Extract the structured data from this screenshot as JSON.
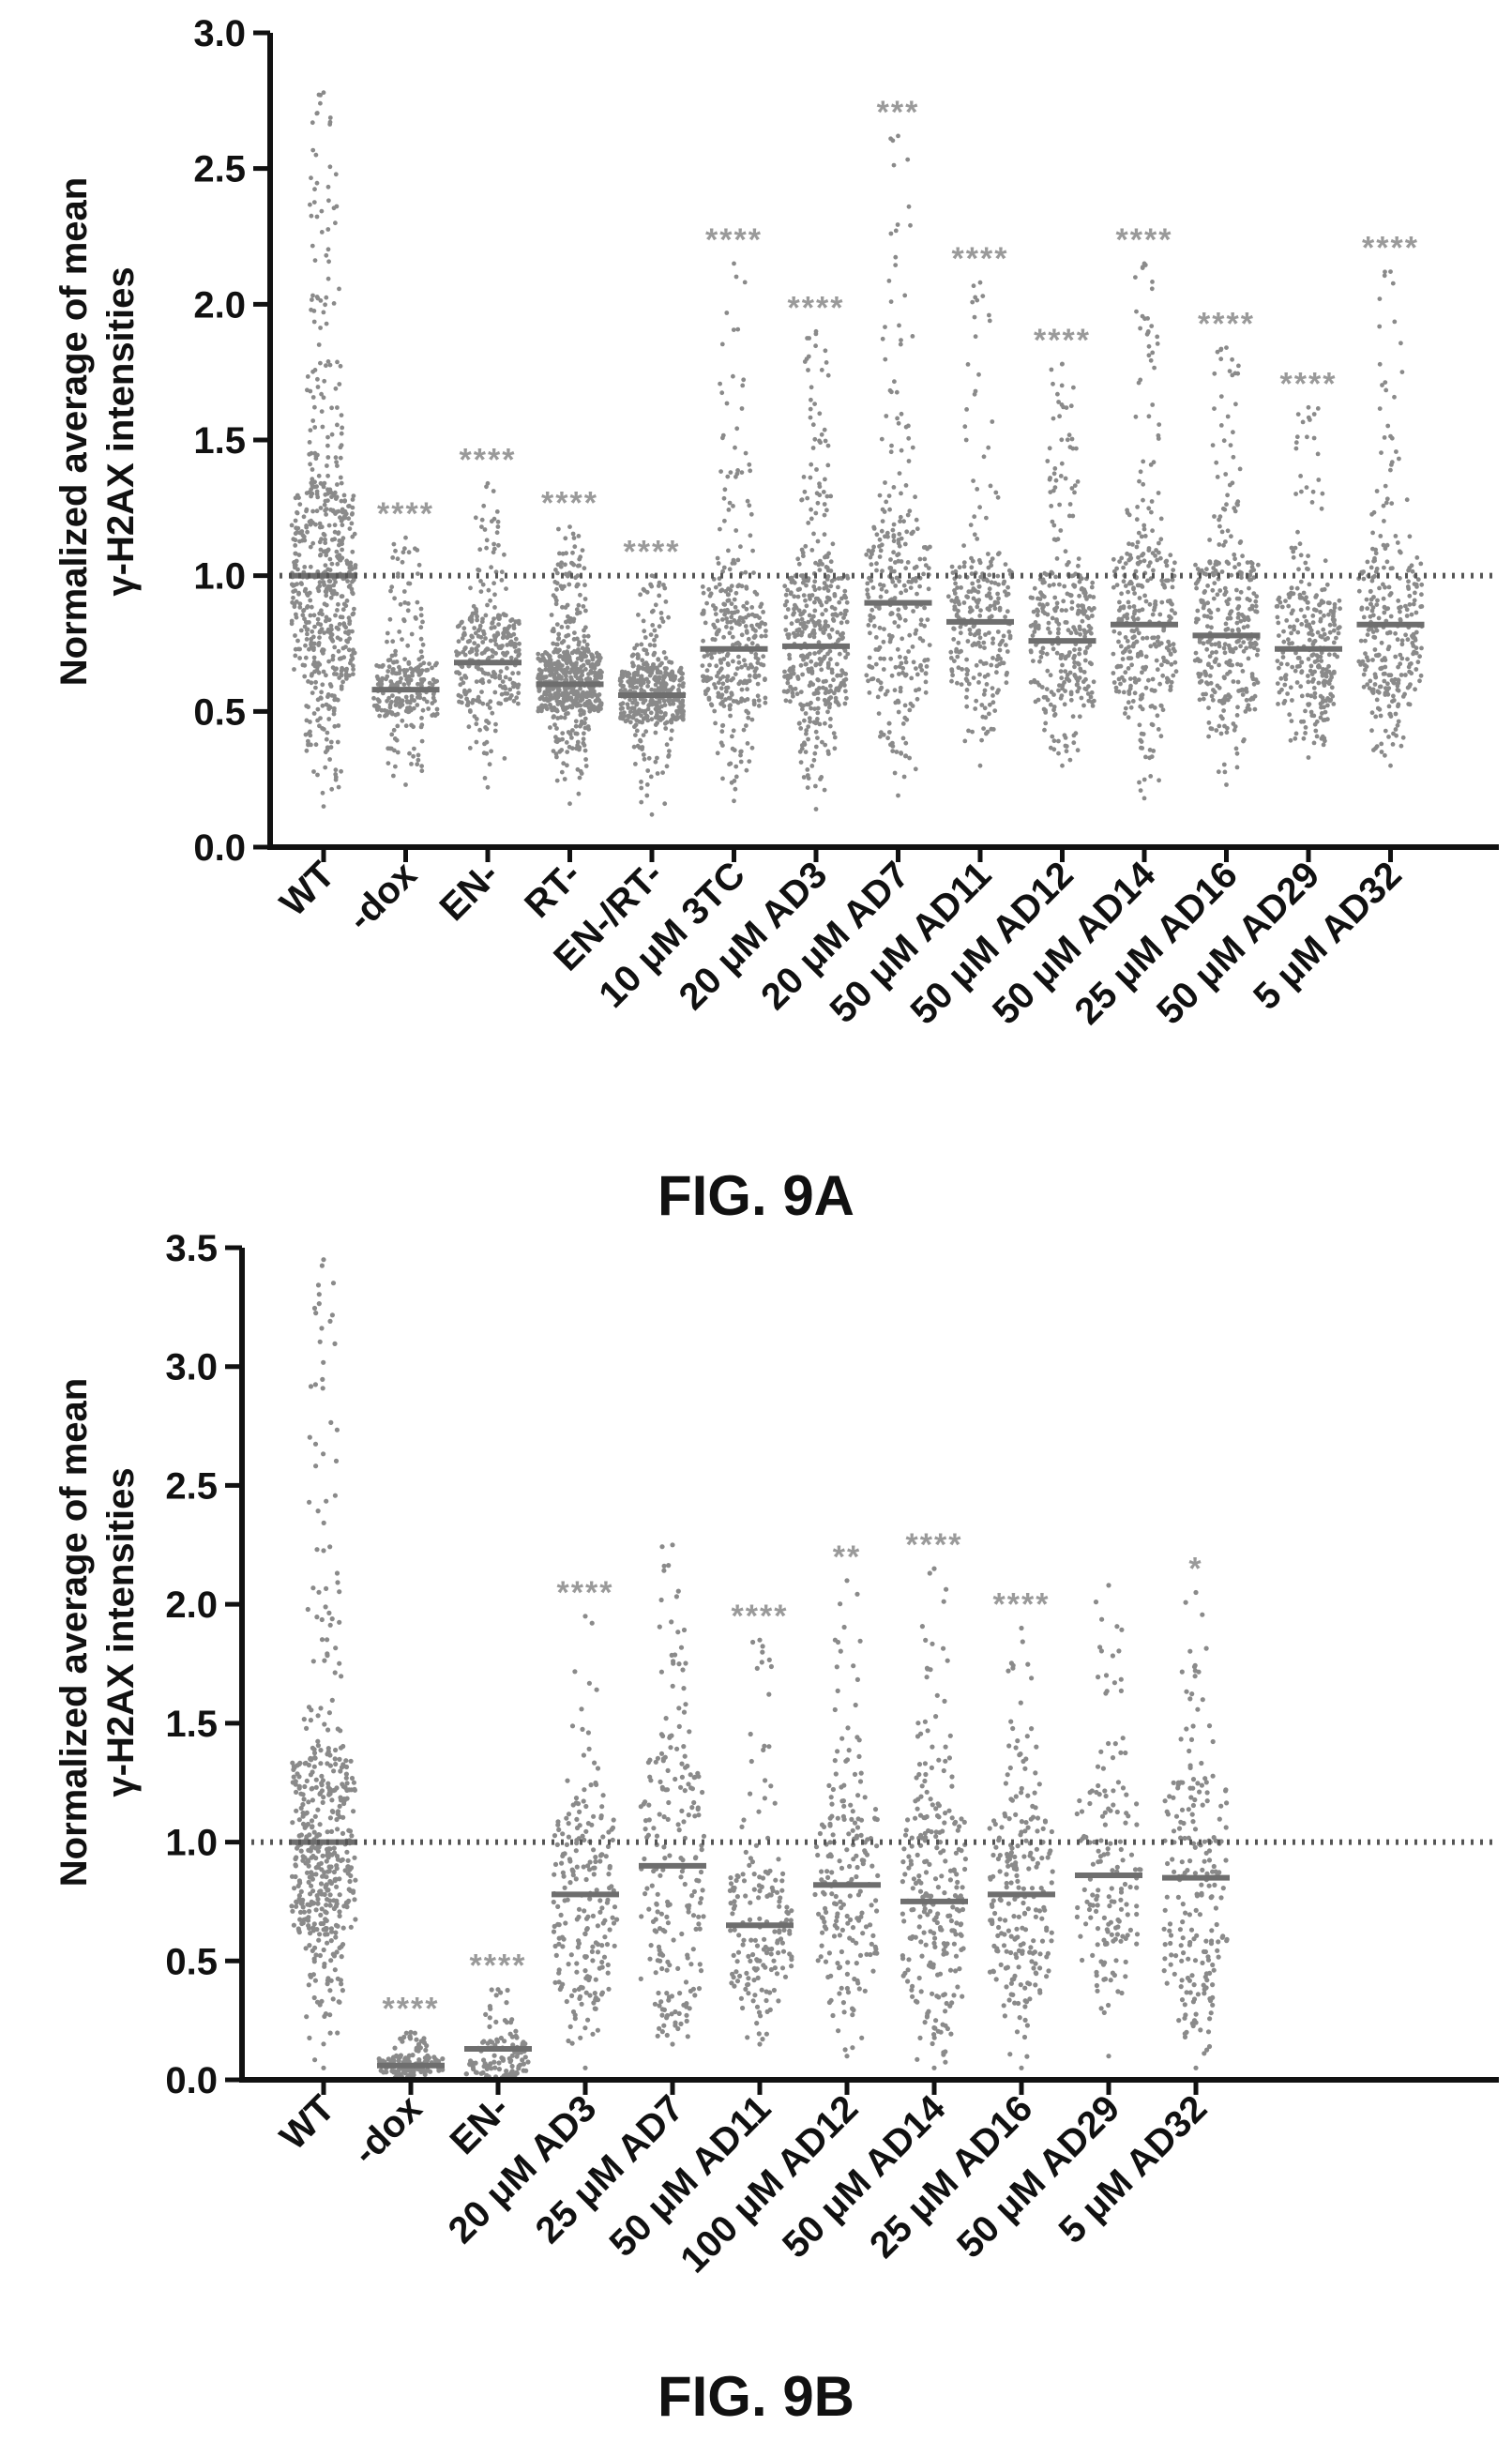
{
  "chart_data": [
    {
      "type": "scatter",
      "caption": "FIG. 9A",
      "ylabel": [
        "Normalized average of mean",
        "γ-H2AX intensities"
      ],
      "ylim": [
        0,
        3.0
      ],
      "yticks": [
        "0.0",
        "0.5",
        "1.0",
        "1.5",
        "2.0",
        "2.5",
        "3.0"
      ],
      "reference_line": 1.0,
      "grid": false,
      "legend": "none",
      "categories": [
        {
          "label": "WT",
          "mean": 1.0,
          "significance": "",
          "min": 0.15,
          "max": 2.78,
          "q1": 0.62,
          "q3": 1.3,
          "n": 600
        },
        {
          "label": "-dox",
          "mean": 0.58,
          "significance": "****",
          "min": 0.23,
          "max": 1.14,
          "q1": 0.48,
          "q3": 0.68,
          "n": 260
        },
        {
          "label": "EN-",
          "mean": 0.68,
          "significance": "****",
          "min": 0.22,
          "max": 1.34,
          "q1": 0.52,
          "q3": 0.84,
          "n": 300
        },
        {
          "label": "RT-",
          "mean": 0.6,
          "significance": "****",
          "min": 0.16,
          "max": 1.18,
          "q1": 0.5,
          "q3": 0.72,
          "n": 600
        },
        {
          "label": "EN-/RT-",
          "mean": 0.56,
          "significance": "****",
          "min": 0.12,
          "max": 1.0,
          "q1": 0.46,
          "q3": 0.66,
          "n": 420
        },
        {
          "label": "10 μM 3TC",
          "mean": 0.73,
          "significance": "****",
          "min": 0.17,
          "max": 2.15,
          "q1": 0.52,
          "q3": 0.96,
          "n": 340
        },
        {
          "label": "20 μM AD3",
          "mean": 0.74,
          "significance": "****",
          "min": 0.14,
          "max": 1.9,
          "q1": 0.52,
          "q3": 1.0,
          "n": 440
        },
        {
          "label": "20 μM AD7",
          "mean": 0.9,
          "significance": "***",
          "min": 0.19,
          "max": 2.62,
          "q1": 0.56,
          "q3": 1.2,
          "n": 300
        },
        {
          "label": "50 μM AD11",
          "mean": 0.83,
          "significance": "****",
          "min": 0.3,
          "max": 2.08,
          "q1": 0.6,
          "q3": 1.05,
          "n": 260
        },
        {
          "label": "50 μM AD12",
          "mean": 0.76,
          "significance": "****",
          "min": 0.3,
          "max": 1.78,
          "q1": 0.52,
          "q3": 1.0,
          "n": 320
        },
        {
          "label": "50 μM AD14",
          "mean": 0.82,
          "significance": "****",
          "min": 0.18,
          "max": 2.15,
          "q1": 0.56,
          "q3": 1.08,
          "n": 330
        },
        {
          "label": "25 μM AD16",
          "mean": 0.78,
          "significance": "****",
          "min": 0.23,
          "max": 1.84,
          "q1": 0.5,
          "q3": 1.05,
          "n": 340
        },
        {
          "label": "50 μM AD29",
          "mean": 0.73,
          "significance": "****",
          "min": 0.33,
          "max": 1.62,
          "q1": 0.52,
          "q3": 0.92,
          "n": 280
        },
        {
          "label": "5 μM AD32",
          "mean": 0.82,
          "significance": "****",
          "min": 0.3,
          "max": 2.12,
          "q1": 0.58,
          "q3": 1.08,
          "n": 300
        }
      ]
    },
    {
      "type": "scatter",
      "caption": "FIG. 9B",
      "ylabel": [
        "Normalized average of mean",
        "γ-H2AX intensities"
      ],
      "ylim": [
        0,
        3.5
      ],
      "yticks": [
        "0.0",
        "0.5",
        "1.0",
        "1.5",
        "2.0",
        "2.5",
        "3.0",
        "3.5"
      ],
      "reference_line": 1.0,
      "grid": false,
      "legend": "none",
      "categories": [
        {
          "label": "WT",
          "mean": 1.0,
          "significance": "",
          "min": 0.05,
          "max": 3.45,
          "q1": 0.62,
          "q3": 1.35,
          "n": 480
        },
        {
          "label": "-dox",
          "mean": 0.06,
          "significance": "****",
          "min": 0.0,
          "max": 0.2,
          "q1": 0.03,
          "q3": 0.1,
          "n": 140
        },
        {
          "label": "EN-",
          "mean": 0.13,
          "significance": "****",
          "min": 0.0,
          "max": 0.38,
          "q1": 0.02,
          "q3": 0.16,
          "n": 120
        },
        {
          "label": "20 μM AD3",
          "mean": 0.78,
          "significance": "****",
          "min": 0.05,
          "max": 1.95,
          "q1": 0.38,
          "q3": 1.1,
          "n": 220
        },
        {
          "label": "25 μM AD7",
          "mean": 0.9,
          "significance": "",
          "min": 0.15,
          "max": 2.25,
          "q1": 0.35,
          "q3": 1.35,
          "n": 220
        },
        {
          "label": "50 μM AD11",
          "mean": 0.65,
          "significance": "****",
          "min": 0.15,
          "max": 1.85,
          "q1": 0.38,
          "q3": 0.9,
          "n": 170
        },
        {
          "label": "100 μM AD12",
          "mean": 0.82,
          "significance": "**",
          "min": 0.1,
          "max": 2.1,
          "q1": 0.45,
          "q3": 1.15,
          "n": 200
        },
        {
          "label": "50 μM AD14",
          "mean": 0.75,
          "significance": "****",
          "min": 0.05,
          "max": 2.15,
          "q1": 0.35,
          "q3": 1.1,
          "n": 260
        },
        {
          "label": "25 μM AD16",
          "mean": 0.78,
          "significance": "****",
          "min": 0.05,
          "max": 1.9,
          "q1": 0.4,
          "q3": 1.1,
          "n": 230
        },
        {
          "label": "50 μM AD29",
          "mean": 0.86,
          "significance": "",
          "min": 0.1,
          "max": 2.08,
          "q1": 0.5,
          "q3": 1.2,
          "n": 160
        },
        {
          "label": "5 μM AD32",
          "mean": 0.85,
          "significance": "*",
          "min": 0.05,
          "max": 2.05,
          "q1": 0.4,
          "q3": 1.25,
          "n": 220
        }
      ]
    }
  ]
}
